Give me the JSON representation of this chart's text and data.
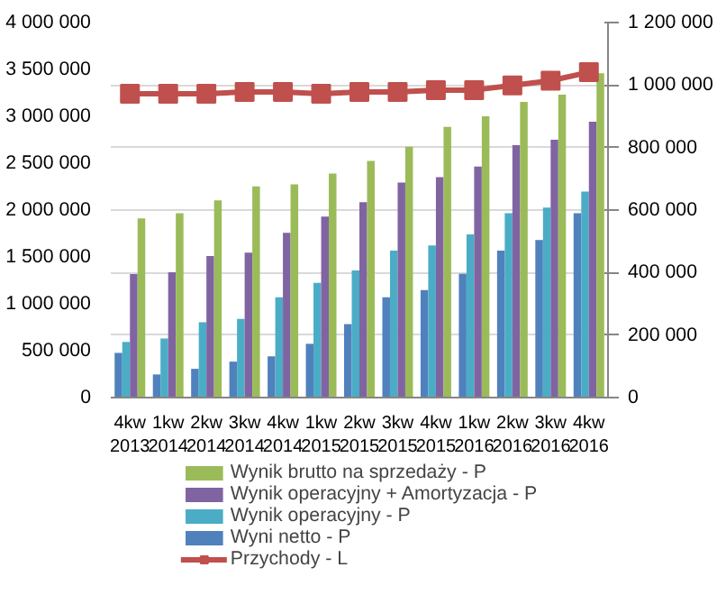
{
  "chart_data": {
    "type": "bar",
    "categories": [
      "4kw\n2013",
      "1kw\n2014",
      "2kw\n2014",
      "3kw\n2014",
      "4kw\n2014",
      "1kw\n2015",
      "2kw\n2015",
      "3kw\n2015",
      "4kw\n2015",
      "1kw\n2016",
      "2kw\n2016",
      "3kw\n2016",
      "4kw\n2016"
    ],
    "series": [
      {
        "name": "Wyni netto - P",
        "color": "#4f81bd",
        "axis": "y2",
        "values": [
          143000,
          74000,
          92000,
          115000,
          132000,
          172000,
          235000,
          321000,
          344000,
          396000,
          470000,
          504000,
          590000
        ]
      },
      {
        "name": "Wynik operacyjny - P",
        "color": "#4bacc6",
        "axis": "y2",
        "values": [
          178000,
          189000,
          241000,
          252000,
          321000,
          367000,
          407000,
          470000,
          487000,
          522000,
          590000,
          608000,
          659000
        ]
      },
      {
        "name": "Wynik operacyjny + Amortyzacja - P",
        "color": "#8064a2",
        "axis": "y2",
        "values": [
          395000,
          401000,
          453000,
          464000,
          527000,
          579000,
          625000,
          688000,
          705000,
          739000,
          808000,
          825000,
          883000
        ]
      },
      {
        "name": "Wynik brutto na sprzedaży - P",
        "color": "#9bbb59",
        "axis": "y2",
        "values": [
          573000,
          590000,
          631000,
          676000,
          682000,
          717000,
          757000,
          803000,
          866000,
          900000,
          946000,
          969000,
          1038000
        ]
      },
      {
        "name": "Przychody - L",
        "color": "#c0504d",
        "type": "line",
        "marker": "square",
        "values": [
          3240000,
          3240000,
          3240000,
          3260000,
          3260000,
          3240000,
          3260000,
          3260000,
          3280000,
          3280000,
          3330000,
          3380000,
          3470000
        ]
      }
    ],
    "ylim": [
      0,
      4000000
    ],
    "yticks": [
      {
        "value": 0,
        "label": "0"
      },
      {
        "value": 500000,
        "label": "500 000"
      },
      {
        "value": 1000000,
        "label": "1 000 000"
      },
      {
        "value": 1500000,
        "label": "1 500 000"
      },
      {
        "value": 2000000,
        "label": "2 000 000"
      },
      {
        "value": 2500000,
        "label": "2 500 000"
      },
      {
        "value": 3000000,
        "label": "3 000 000"
      },
      {
        "value": 3500000,
        "label": "3 500 000"
      },
      {
        "value": 4000000,
        "label": "4 000 000"
      }
    ],
    "y2lim": [
      0,
      1200000
    ],
    "y2ticks": [
      {
        "value": 0,
        "label": "0"
      },
      {
        "value": 200000,
        "label": "200 000"
      },
      {
        "value": 400000,
        "label": "400 000"
      },
      {
        "value": 600000,
        "label": "600 000"
      },
      {
        "value": 800000,
        "label": "800 000"
      },
      {
        "value": 1000000,
        "label": "1 000 000"
      },
      {
        "value": 1200000,
        "label": "1 200 000"
      }
    ],
    "grid": "y",
    "legend": "bottom"
  }
}
